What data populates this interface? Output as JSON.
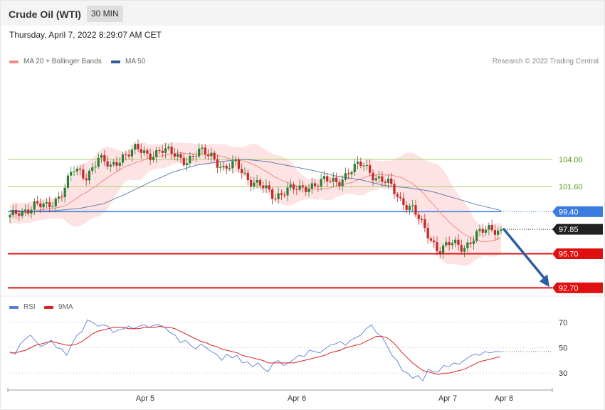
{
  "header": {
    "title": "Crude Oil (WTI)",
    "timeframe": "30 MIN"
  },
  "date_text": "Thursday, April 7, 2022 8:29:07 AM CET",
  "legend_top": [
    {
      "label": "MA 20 + Bollinger Bands",
      "color": "#f28b86"
    },
    {
      "label": "MA 50",
      "color": "#2f5d9a"
    }
  ],
  "credit": "Research © 2022 Trading Central",
  "legend_rsi": [
    {
      "label": "RSI",
      "color": "#5b7fd6"
    },
    {
      "label": "9MA",
      "color": "#dd2222"
    }
  ],
  "colors": {
    "up": "#2e7d32",
    "down": "#c62828",
    "band": "#fde3e3",
    "ma20": "#f08080",
    "ma50": "#2f5d9a",
    "resistance": "#a6cf6d",
    "support": "#e01010",
    "pivot": "#3a7be0",
    "arrow": "#2b5da3",
    "last": "#222222"
  },
  "chart_data": [
    {
      "type": "line",
      "subtype": "candlestick",
      "x_ticks": [
        "Apr 5",
        "Apr 6",
        "Apr 7",
        "Apr 8"
      ],
      "ylim": [
        92.1,
        112.0
      ],
      "levels": [
        {
          "value": 104.0,
          "label": "104.00",
          "kind": "resistance"
        },
        {
          "value": 101.6,
          "label": "101.60",
          "kind": "resistance"
        },
        {
          "value": 99.4,
          "label": "99.40",
          "kind": "pivot"
        },
        {
          "value": 97.85,
          "label": "97.85",
          "kind": "last"
        },
        {
          "value": 95.7,
          "label": "95.70",
          "kind": "support"
        },
        {
          "value": 92.7,
          "label": "92.70",
          "kind": "support"
        }
      ],
      "forecast_arrow": {
        "from": 97.85,
        "to": 92.7
      },
      "key_closes": [
        98.9,
        99.4,
        100.1,
        99.7,
        100.9,
        103.1,
        102.4,
        104.2,
        103.2,
        104.4,
        104.9,
        104.3,
        104.9,
        104.4,
        103.9,
        104.6,
        104.4,
        103.1,
        103.6,
        102.2,
        101.6,
        100.7,
        101.4,
        101.3,
        101.8,
        102.1,
        102.0,
        103.0,
        103.6,
        102.5,
        101.9,
        100.4,
        99.7,
        97.6,
        96.1,
        96.6,
        96.2,
        97.4,
        97.8,
        97.85
      ],
      "ma50_path": [
        99.5,
        99.4,
        99.5,
        99.7,
        100.1,
        101.0,
        102.0,
        102.9,
        103.5,
        103.8,
        104.0,
        103.8,
        103.4,
        103.0,
        102.5,
        102.2,
        101.7,
        101.5,
        101.2,
        100.6,
        100.0,
        99.5
      ]
    },
    {
      "type": "line",
      "title": "RSI",
      "ylim": [
        20,
        75
      ],
      "y_ticks": [
        70,
        50,
        30
      ],
      "series": [
        {
          "name": "RSI",
          "values": [
            47,
            45,
            53,
            57,
            60,
            55,
            51,
            53,
            56,
            50,
            49,
            44,
            53,
            60,
            63,
            72,
            70,
            67,
            68,
            67,
            62,
            64,
            65,
            67,
            65,
            67,
            68,
            66,
            68,
            68,
            66,
            62,
            60,
            54,
            56,
            52,
            49,
            53,
            50,
            47,
            45,
            40,
            45,
            42,
            44,
            38,
            39,
            35,
            38,
            34,
            31,
            38,
            40,
            36,
            38,
            41,
            44,
            43,
            48,
            47,
            46,
            49,
            52,
            53,
            55,
            52,
            56,
            58,
            60,
            65,
            68,
            62,
            59,
            52,
            44,
            40,
            32,
            30,
            26,
            28,
            24,
            33,
            31,
            31,
            36,
            35,
            38,
            37,
            40,
            43,
            45,
            44,
            47,
            46,
            47,
            47
          ]
        },
        {
          "name": "9MA",
          "values": [
            46,
            46,
            47,
            48,
            50,
            52,
            53,
            54,
            55,
            54,
            53,
            52,
            52,
            53,
            55,
            58,
            61,
            63,
            64,
            65,
            66,
            66,
            66,
            65,
            65,
            65,
            66,
            66,
            66,
            67,
            66,
            66,
            65,
            63,
            61,
            59,
            57,
            55,
            54,
            52,
            51,
            49,
            48,
            47,
            46,
            44,
            43,
            42,
            41,
            40,
            38,
            38,
            38,
            38,
            38,
            38,
            39,
            40,
            41,
            42,
            43,
            44,
            46,
            47,
            48,
            50,
            51,
            52,
            53,
            55,
            57,
            59,
            59,
            58,
            55,
            51,
            46,
            42,
            38,
            35,
            32,
            31,
            30,
            29,
            30,
            30,
            31,
            32,
            33,
            35,
            37,
            39,
            40,
            41,
            42,
            43
          ]
        }
      ]
    }
  ]
}
